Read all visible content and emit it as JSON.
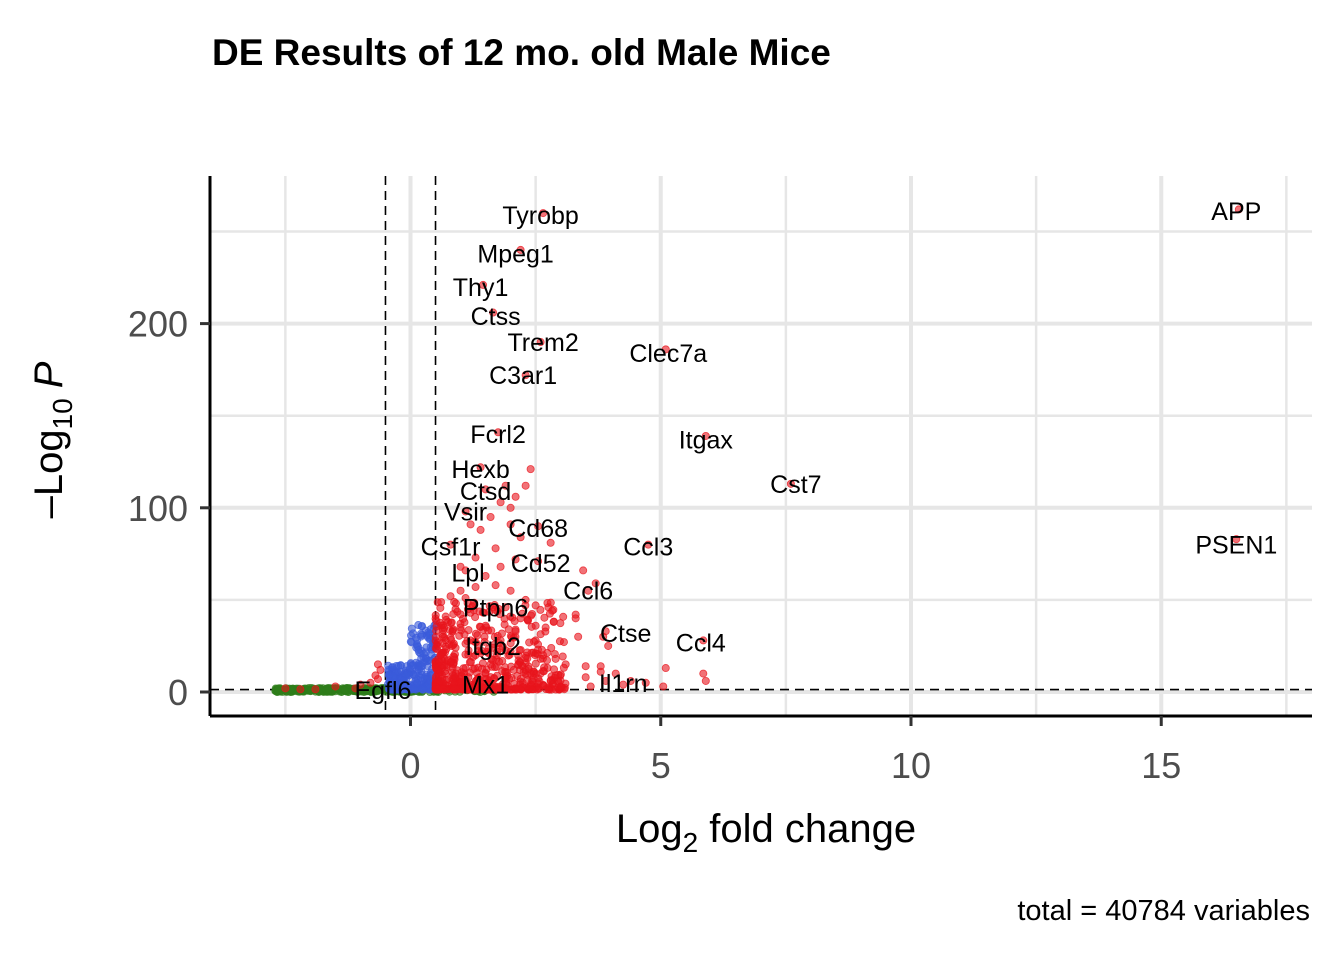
{
  "chart_data": {
    "type": "scatter",
    "title": "DE Results of 12 mo. old Male Mice",
    "xlabel_prefix": "Log",
    "xlabel_sub": "2",
    "xlabel_suffix": " fold change",
    "ylabel_prefix": "–Log",
    "ylabel_sub": "10",
    "ylabel_italic": "P",
    "caption": "total = 40784 variables",
    "xlim": [
      -4,
      18
    ],
    "ylim": [
      -13,
      280
    ],
    "xticks": [
      0,
      5,
      10,
      15
    ],
    "yticks": [
      0,
      100,
      200
    ],
    "grid": true,
    "fc_cutoff": 0.5,
    "p_cutoff_neglog10": 1.3,
    "colors": {
      "significant": "#e8141c",
      "p_only": "#3b5bdb",
      "not_significant": "#2e7d1a",
      "axis": "#000000",
      "grid": "#e6e6e6"
    },
    "labeled_genes": [
      {
        "gene": "Tyrobp",
        "x": 2.65,
        "y": 260,
        "lx": 2.6,
        "ly": 259
      },
      {
        "gene": "APP",
        "x": 16.55,
        "y": 262,
        "lx": 16.5,
        "ly": 261
      },
      {
        "gene": "Mpeg1",
        "x": 2.2,
        "y": 240,
        "lx": 2.1,
        "ly": 238
      },
      {
        "gene": "Thy1",
        "x": 1.45,
        "y": 221,
        "lx": 1.4,
        "ly": 220
      },
      {
        "gene": "Ctss",
        "x": 1.65,
        "y": 206,
        "lx": 1.7,
        "ly": 204
      },
      {
        "gene": "Trem2",
        "x": 2.6,
        "y": 190,
        "lx": 2.65,
        "ly": 190
      },
      {
        "gene": "Clec7a",
        "x": 5.1,
        "y": 186,
        "lx": 5.15,
        "ly": 184
      },
      {
        "gene": "C3ar1",
        "x": 2.3,
        "y": 172,
        "lx": 2.25,
        "ly": 172
      },
      {
        "gene": "Fcrl2",
        "x": 1.75,
        "y": 141,
        "lx": 1.75,
        "ly": 140
      },
      {
        "gene": "Itgax",
        "x": 5.9,
        "y": 139,
        "lx": 5.9,
        "ly": 137
      },
      {
        "gene": "Cst7",
        "x": 7.6,
        "y": 113,
        "lx": 7.7,
        "ly": 113
      },
      {
        "gene": "Hexb",
        "x": 1.4,
        "y": 122,
        "lx": 1.4,
        "ly": 121
      },
      {
        "gene": "Ctsd",
        "x": 1.5,
        "y": 110,
        "lx": 1.5,
        "ly": 109
      },
      {
        "gene": "Vsir",
        "x": 1.1,
        "y": 98,
        "lx": 1.1,
        "ly": 98
      },
      {
        "gene": "PSEN1",
        "x": 16.5,
        "y": 83,
        "lx": 16.5,
        "ly": 80
      },
      {
        "gene": "Cd68",
        "x": 2.55,
        "y": 90,
        "lx": 2.55,
        "ly": 89
      },
      {
        "gene": "Csf1r",
        "x": 0.8,
        "y": 80,
        "lx": 0.8,
        "ly": 79
      },
      {
        "gene": "Ccl3",
        "x": 4.75,
        "y": 80,
        "lx": 4.75,
        "ly": 79
      },
      {
        "gene": "Cd52",
        "x": 2.55,
        "y": 71,
        "lx": 2.6,
        "ly": 70
      },
      {
        "gene": "Lpl",
        "x": 1.1,
        "y": 66,
        "lx": 1.15,
        "ly": 65
      },
      {
        "gene": "Ccl6",
        "x": 3.55,
        "y": 55,
        "lx": 3.55,
        "ly": 55
      },
      {
        "gene": "Ptpn6",
        "x": 1.65,
        "y": 46,
        "lx": 1.7,
        "ly": 46
      },
      {
        "gene": "Ctse",
        "x": 3.9,
        "y": 33,
        "lx": 4.3,
        "ly": 32
      },
      {
        "gene": "Ccl4",
        "x": 5.85,
        "y": 28,
        "lx": 5.8,
        "ly": 27
      },
      {
        "gene": "Itgb2",
        "x": 1.65,
        "y": 24,
        "lx": 1.65,
        "ly": 25
      },
      {
        "gene": "Il1rn",
        "x": 3.9,
        "y": 6,
        "lx": 4.25,
        "ly": 5
      },
      {
        "gene": "Mx1",
        "x": 1.4,
        "y": 5,
        "lx": 1.5,
        "ly": 4
      },
      {
        "gene": "Egfl6",
        "x": -1.1,
        "y": 2,
        "lx": -0.55,
        "ly": 1
      }
    ],
    "significant_points": [
      [
        2.4,
        121
      ],
      [
        2.1,
        106
      ],
      [
        1.8,
        103
      ],
      [
        1.9,
        112
      ],
      [
        2.3,
        112
      ],
      [
        2.0,
        100
      ],
      [
        1.6,
        95
      ],
      [
        1.2,
        91
      ],
      [
        1.4,
        88
      ],
      [
        2.0,
        91
      ],
      [
        2.8,
        81
      ],
      [
        2.2,
        84
      ],
      [
        1.3,
        73
      ],
      [
        1.7,
        78
      ],
      [
        1.8,
        68
      ],
      [
        2.1,
        72
      ],
      [
        1.0,
        68
      ],
      [
        1.5,
        63
      ],
      [
        1.3,
        57
      ],
      [
        1.7,
        58
      ],
      [
        1.1,
        51
      ],
      [
        2.0,
        55
      ],
      [
        2.3,
        50
      ],
      [
        2.5,
        47
      ],
      [
        1.9,
        46
      ],
      [
        1.2,
        43
      ],
      [
        2.2,
        40
      ],
      [
        3.45,
        66
      ],
      [
        3.7,
        59
      ],
      [
        3.3,
        42
      ],
      [
        3.3,
        40
      ],
      [
        2.7,
        35
      ],
      [
        2.5,
        36
      ],
      [
        2.1,
        33
      ],
      [
        1.5,
        36
      ],
      [
        1.0,
        35
      ],
      [
        3.35,
        30
      ],
      [
        3.85,
        30
      ],
      [
        3.95,
        25
      ],
      [
        2.5,
        28
      ],
      [
        1.8,
        28
      ],
      [
        1.2,
        28
      ],
      [
        0.9,
        24
      ],
      [
        1.3,
        20
      ],
      [
        2.0,
        22
      ],
      [
        2.5,
        21
      ],
      [
        2.9,
        18
      ],
      [
        2.6,
        18
      ],
      [
        3.1,
        15
      ],
      [
        3.5,
        14
      ],
      [
        3.8,
        14
      ],
      [
        4.1,
        10
      ],
      [
        5.1,
        13
      ],
      [
        5.85,
        10
      ],
      [
        5.9,
        6
      ],
      [
        4.4,
        6
      ],
      [
        4.25,
        4
      ],
      [
        3.8,
        11
      ],
      [
        3.5,
        8
      ],
      [
        2.8,
        6
      ],
      [
        3.0,
        3
      ],
      [
        2.4,
        4
      ],
      [
        1.9,
        8
      ],
      [
        1.5,
        10
      ],
      [
        1.1,
        13
      ],
      [
        0.8,
        16
      ],
      [
        0.7,
        10
      ],
      [
        0.6,
        6
      ],
      [
        0.65,
        30
      ],
      [
        0.75,
        38
      ],
      [
        0.9,
        45
      ],
      [
        1.0,
        55
      ],
      [
        0.8,
        52
      ],
      [
        0.6,
        20
      ],
      [
        1.6,
        15
      ],
      [
        2.3,
        12
      ],
      [
        2.6,
        10
      ],
      [
        2.9,
        9
      ],
      [
        1.2,
        4
      ],
      [
        1.7,
        3
      ],
      [
        2.1,
        2
      ],
      [
        5.05,
        3
      ],
      [
        4.7,
        5
      ],
      [
        3.6,
        3
      ],
      [
        -0.65,
        15
      ],
      [
        -0.6,
        12
      ],
      [
        -0.7,
        9
      ],
      [
        -0.8,
        5
      ],
      [
        -1.0,
        4
      ],
      [
        -1.5,
        3
      ],
      [
        -2.5,
        2
      ],
      [
        -2.2,
        1.5
      ],
      [
        -1.9,
        1.5
      ],
      [
        -0.65,
        7
      ]
    ]
  }
}
